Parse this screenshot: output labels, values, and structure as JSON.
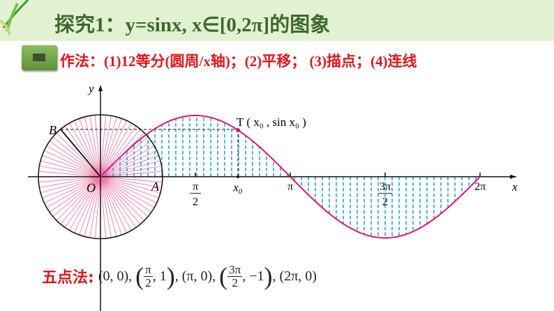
{
  "title": "探究1：y=sinx, x∈[0,2π]的图象",
  "subtitle": "作法：(1)12等分(圆周/x轴)；(2)平移； (3)描点；(4)连线",
  "icon": "video-camera-icon",
  "diagram": {
    "axis_x": "x",
    "axis_y": "y",
    "origin": "O",
    "point_a": "A",
    "point_b": "B",
    "point_t": "T ( x₀ , sin x₀ )",
    "ticks": {
      "pi_2_num": "π",
      "pi_2_den": "2",
      "x0": "x₀",
      "pi": "π",
      "three_pi_2_num": "3π",
      "three_pi_2_den": "2",
      "two_pi": "2π"
    },
    "colors": {
      "curve": "#e0147f",
      "rays": "#f07aa8",
      "fill_lines": "#29a3dd"
    }
  },
  "five_point": {
    "label": "五点法:",
    "p1": "(0, 0),",
    "p2_num": "π",
    "p2_den": "2",
    "p2_rest": ", 1",
    "p3": "(π, 0),",
    "p4_num": "3π",
    "p4_den": "2",
    "p4_rest": ", −1",
    "p5": ", (2π, 0)"
  }
}
